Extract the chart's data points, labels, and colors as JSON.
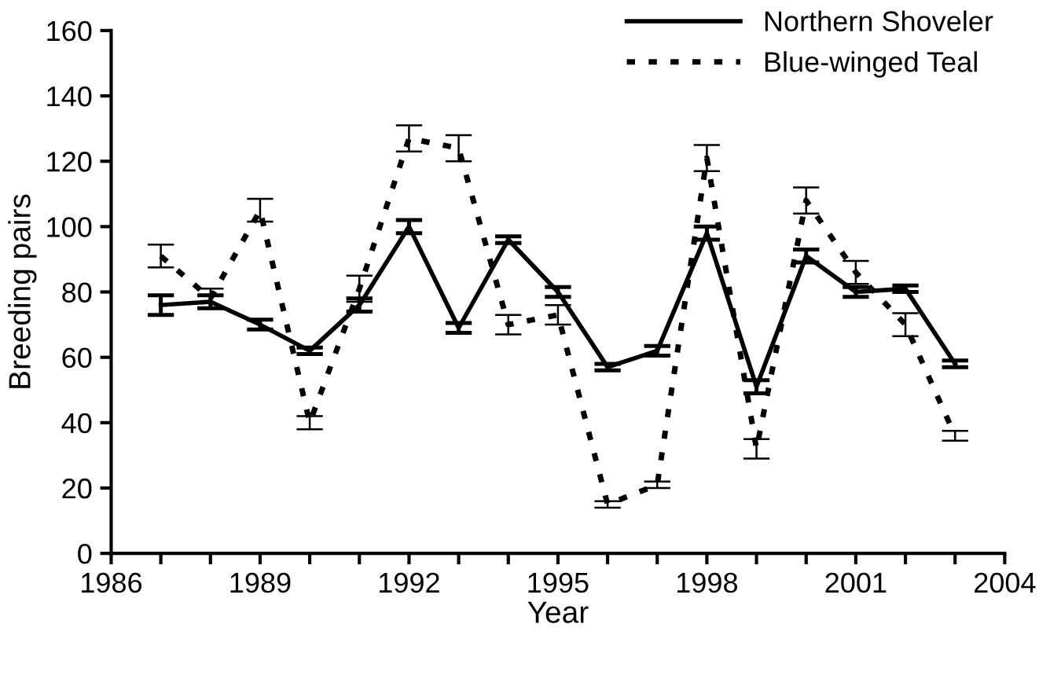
{
  "chart_data": {
    "type": "line",
    "xlabel": "Year",
    "ylabel": "Breeding pairs",
    "x": [
      1987,
      1988,
      1989,
      1990,
      1991,
      1992,
      1993,
      1994,
      1995,
      1996,
      1997,
      1998,
      1999,
      2000,
      2001,
      2002,
      2003
    ],
    "series": [
      {
        "name": "Northern Shoveler",
        "color": "#000000",
        "line_style": "solid",
        "values": [
          76,
          77,
          70,
          62,
          76,
          100,
          69,
          96,
          80,
          57,
          62,
          98,
          51,
          91,
          80,
          81,
          58
        ],
        "errors": [
          3,
          2,
          1.5,
          1,
          2,
          2,
          1.5,
          1,
          1.5,
          1,
          1.5,
          2,
          2,
          2,
          1.5,
          1,
          1
        ]
      },
      {
        "name": "Blue-winged Teal",
        "color": "#000000",
        "line_style": "dotted",
        "values": [
          91,
          78,
          105,
          40,
          81,
          127,
          124,
          70,
          73,
          15,
          21,
          121,
          32,
          108,
          86,
          70,
          36
        ],
        "errors": [
          3.5,
          3,
          3.5,
          2,
          4,
          4,
          4,
          3,
          3,
          1,
          1,
          4,
          3,
          4,
          3.5,
          3.5,
          1.5
        ]
      }
    ],
    "xlim": [
      1986,
      2004
    ],
    "xticks": [
      1986,
      {
        "value": 1987,
        "label": null
      },
      {
        "value": 1988,
        "label": null
      },
      1989,
      {
        "value": 1990,
        "label": null
      },
      {
        "value": 1991,
        "label": null
      },
      1992,
      {
        "value": 1993,
        "label": null
      },
      {
        "value": 1994,
        "label": null
      },
      1995,
      {
        "value": 1996,
        "label": null
      },
      {
        "value": 1997,
        "label": null
      },
      1998,
      {
        "value": 1999,
        "label": null
      },
      {
        "value": 2000,
        "label": null
      },
      2001,
      {
        "value": 2002,
        "label": null
      },
      {
        "value": 2003,
        "label": null
      },
      2004
    ],
    "ylim": [
      0,
      160
    ],
    "yticks": [
      0,
      20,
      40,
      60,
      80,
      100,
      120,
      140,
      160
    ],
    "grid": false,
    "legend": "top right",
    "marker": "none"
  }
}
